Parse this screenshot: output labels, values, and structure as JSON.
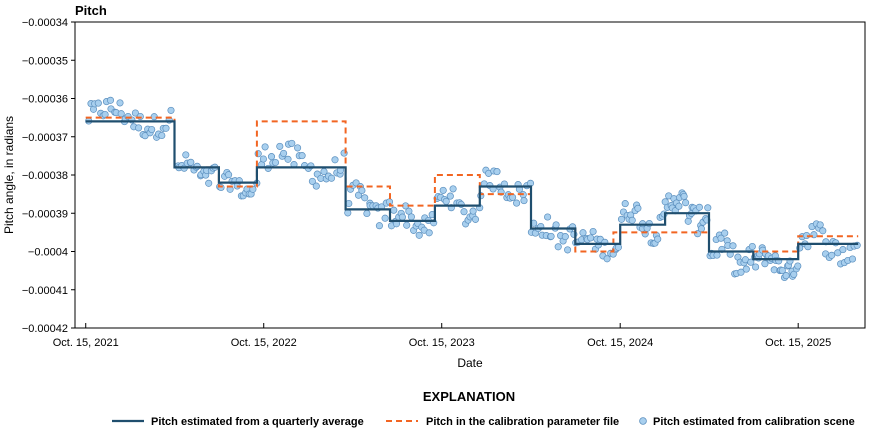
{
  "chart_data": {
    "type": "line",
    "title": "Pitch",
    "xlabel": "Date",
    "ylabel": "Pitch angle, in radians",
    "ylim": [
      -0.00042,
      -0.00034
    ],
    "y_ticks": [
      -0.00034,
      -0.00035,
      -0.00036,
      -0.00037,
      -0.00038,
      -0.00039,
      -0.0004,
      -0.00041,
      -0.00042
    ],
    "y_tick_labels": [
      "−0.00034",
      "−0.00035",
      "−0.00036",
      "−0.00037",
      "−0.00038",
      "−0.00039",
      "−0.0004",
      "−0.00041",
      "−0.00042"
    ],
    "xlim": [
      "2021-09-23",
      "2026-03-01"
    ],
    "x_ticks": [
      "2021-10-15",
      "2022-10-15",
      "2023-10-15",
      "2024-10-15",
      "2025-10-15"
    ],
    "x_tick_labels": [
      "Oct. 15, 2021",
      "Oct. 15, 2022",
      "Oct. 15, 2023",
      "Oct. 15, 2024",
      "Oct. 15, 2025"
    ],
    "grid": false,
    "legend_title": "EXPLANATION",
    "legend_position": "bottom",
    "colors": {
      "quarterly": "#1f4e6e",
      "calibration": "#f26522",
      "scene_fill": "#a8cfee",
      "scene_edge": "#5b8fbe"
    },
    "series": [
      {
        "name": "Pitch estimated from a quarterly average",
        "style": "solid-step",
        "points": [
          [
            "2021-10-15",
            -0.000366
          ],
          [
            "2022-04-15",
            -0.000366
          ],
          [
            "2022-04-15",
            -0.000378
          ],
          [
            "2022-07-15",
            -0.000378
          ],
          [
            "2022-07-15",
            -0.000382
          ],
          [
            "2022-10-01",
            -0.000382
          ],
          [
            "2022-10-01",
            -0.000378
          ],
          [
            "2023-04-01",
            -0.000378
          ],
          [
            "2023-04-01",
            -0.000389
          ],
          [
            "2023-07-01",
            -0.000389
          ],
          [
            "2023-07-01",
            -0.000392
          ],
          [
            "2023-10-01",
            -0.000392
          ],
          [
            "2023-10-01",
            -0.000388
          ],
          [
            "2024-01-01",
            -0.000388
          ],
          [
            "2024-01-01",
            -0.000383
          ],
          [
            "2024-04-15",
            -0.000383
          ],
          [
            "2024-04-15",
            -0.000394
          ],
          [
            "2024-07-15",
            -0.000394
          ],
          [
            "2024-07-15",
            -0.000398
          ],
          [
            "2024-10-15",
            -0.000398
          ],
          [
            "2024-10-15",
            -0.000393
          ],
          [
            "2025-01-15",
            -0.000393
          ],
          [
            "2025-01-15",
            -0.00039
          ],
          [
            "2025-04-15",
            -0.00039
          ],
          [
            "2025-04-15",
            -0.0004
          ],
          [
            "2025-07-15",
            -0.0004
          ],
          [
            "2025-07-15",
            -0.000402
          ],
          [
            "2025-10-15",
            -0.000402
          ],
          [
            "2025-10-15",
            -0.000398
          ],
          [
            "2026-02-15",
            -0.000398
          ]
        ]
      },
      {
        "name": "Pitch in the calibration parameter file",
        "style": "dashed-step",
        "points": [
          [
            "2021-10-15",
            -0.000365
          ],
          [
            "2022-04-15",
            -0.000365
          ],
          [
            "2022-04-15",
            -0.000378
          ],
          [
            "2022-07-15",
            -0.000378
          ],
          [
            "2022-07-15",
            -0.000383
          ],
          [
            "2022-10-01",
            -0.000383
          ],
          [
            "2022-10-01",
            -0.000366
          ],
          [
            "2023-04-01",
            -0.000366
          ],
          [
            "2023-04-01",
            -0.000383
          ],
          [
            "2023-07-01",
            -0.000383
          ],
          [
            "2023-07-01",
            -0.000388
          ],
          [
            "2023-10-01",
            -0.000388
          ],
          [
            "2023-10-01",
            -0.00038
          ],
          [
            "2024-01-01",
            -0.00038
          ],
          [
            "2024-01-01",
            -0.000385
          ],
          [
            "2024-04-15",
            -0.000385
          ],
          [
            "2024-04-15",
            -0.000394
          ],
          [
            "2024-07-15",
            -0.000394
          ],
          [
            "2024-07-15",
            -0.0004
          ],
          [
            "2024-10-01",
            -0.0004
          ],
          [
            "2024-10-01",
            -0.000395
          ],
          [
            "2025-04-15",
            -0.000395
          ],
          [
            "2025-04-15",
            -0.0004
          ],
          [
            "2025-10-15",
            -0.0004
          ],
          [
            "2025-10-15",
            -0.000396
          ],
          [
            "2026-02-15",
            -0.000396
          ]
        ]
      },
      {
        "name": "Pitch estimated from calibration scene",
        "style": "markers",
        "segments": [
          {
            "start": "2021-10-18",
            "end": "2022-04-10",
            "center": -0.000365,
            "amplitude": 2.5e-06,
            "noise": 3e-06,
            "count": 36
          },
          {
            "start": "2022-04-20",
            "end": "2022-07-10",
            "center": -0.000379,
            "amplitude": 2e-06,
            "noise": 2.5e-06,
            "count": 20
          },
          {
            "start": "2022-07-15",
            "end": "2022-10-01",
            "center": -0.000383,
            "amplitude": 1.5e-06,
            "noise": 2.2e-06,
            "count": 18
          },
          {
            "start": "2022-10-01",
            "end": "2023-04-01",
            "center": -0.000377,
            "amplitude": 3e-06,
            "noise": 3.5e-06,
            "count": 34
          },
          {
            "start": "2023-04-01",
            "end": "2023-07-01",
            "center": -0.000388,
            "amplitude": 3e-06,
            "noise": 3e-06,
            "count": 20
          },
          {
            "start": "2023-07-01",
            "end": "2023-10-01",
            "center": -0.000392,
            "amplitude": 2e-06,
            "noise": 2.8e-06,
            "count": 22
          },
          {
            "start": "2023-10-01",
            "end": "2024-01-01",
            "center": -0.000388,
            "amplitude": 3e-06,
            "noise": 2.8e-06,
            "count": 20
          },
          {
            "start": "2024-01-01",
            "end": "2024-04-15",
            "center": -0.000383,
            "amplitude": 2e-06,
            "noise": 3e-06,
            "count": 22
          },
          {
            "start": "2024-04-15",
            "end": "2024-07-15",
            "center": -0.000395,
            "amplitude": 2e-06,
            "noise": 3e-06,
            "count": 20
          },
          {
            "start": "2024-07-15",
            "end": "2024-10-15",
            "center": -0.000398,
            "amplitude": 1.5e-06,
            "noise": 2.5e-06,
            "count": 20
          },
          {
            "start": "2024-10-15",
            "end": "2025-01-15",
            "center": -0.000392,
            "amplitude": 3e-06,
            "noise": 3e-06,
            "count": 24
          },
          {
            "start": "2025-01-15",
            "end": "2025-04-15",
            "center": -0.000389,
            "amplitude": 3e-06,
            "noise": 3.5e-06,
            "count": 28
          },
          {
            "start": "2025-04-15",
            "end": "2025-07-15",
            "center": -0.000401,
            "amplitude": 3e-06,
            "noise": 3.5e-06,
            "count": 24
          },
          {
            "start": "2025-07-15",
            "end": "2025-10-15",
            "center": -0.000403,
            "amplitude": 2e-06,
            "noise": 2.5e-06,
            "count": 30
          },
          {
            "start": "2025-10-15",
            "end": "2026-02-15",
            "center": -0.000398,
            "amplitude": 3e-06,
            "noise": 3.5e-06,
            "count": 26
          }
        ]
      }
    ]
  }
}
